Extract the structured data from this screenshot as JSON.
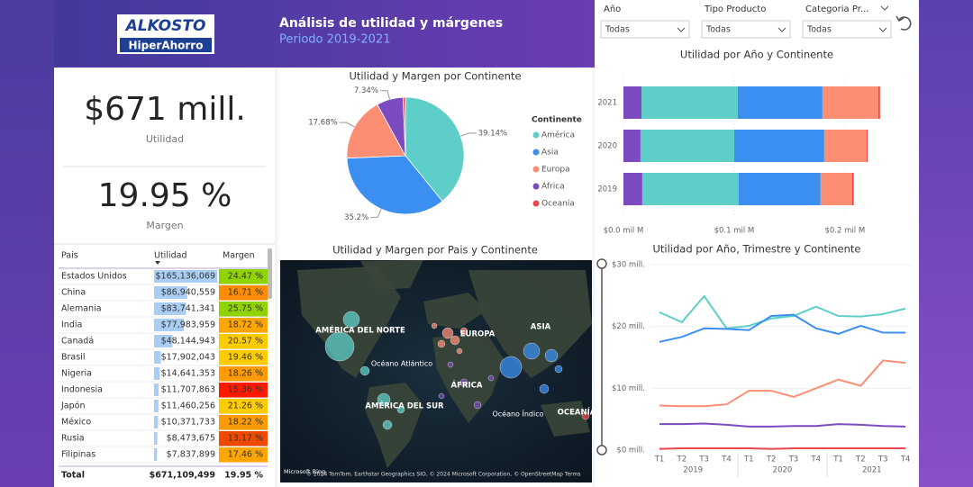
{
  "header": {
    "logo_top": "ALKOSTO",
    "logo_bottom": "HiperAhorro",
    "title": "Análisis de utilidad y márgenes",
    "subtitle": "Periodo 2019-2021"
  },
  "filters": [
    {
      "label": "Año",
      "value": "Todas"
    },
    {
      "label": "Tipo Producto",
      "value": "Todas"
    },
    {
      "label": "Categoria Pr...",
      "value": "Todas"
    }
  ],
  "kpis": [
    {
      "value": "$671 mill.",
      "label": "Utilidad"
    },
    {
      "value": "19.95 %",
      "label": "Margen"
    }
  ],
  "table": {
    "columns": [
      "Pais",
      "Utilidad",
      "Margen"
    ],
    "rows": [
      [
        "Estados Unidos",
        "$165,136,069",
        "24.47 %"
      ],
      [
        "China",
        "$86,940,559",
        "16.71 %"
      ],
      [
        "Alemania",
        "$83,741,341",
        "25.75 %"
      ],
      [
        "India",
        "$77,983,959",
        "18.72 %"
      ],
      [
        "Canadá",
        "$48,144,943",
        "20.57 %"
      ],
      [
        "Brasil",
        "$17,902,043",
        "19.46 %"
      ],
      [
        "Nigeria",
        "$14,641,353",
        "18.26 %"
      ],
      [
        "Indonesia",
        "$11,707,863",
        "15.36 %"
      ],
      [
        "Japón",
        "$11,460,256",
        "21.26 %"
      ],
      [
        "México",
        "$10,371,733",
        "18.22 %"
      ],
      [
        "Rusia",
        "$8,473,675",
        "13.17 %"
      ],
      [
        "Filipinas",
        "$7,837,899",
        "17.46 %"
      ]
    ],
    "margin_colors": [
      "#8fd400",
      "#ff8c00",
      "#8fd400",
      "#ffa500",
      "#ffcc00",
      "#ffcc00",
      "#ff9a00",
      "#ff1a00",
      "#ffcc00",
      "#ff9a00",
      "#f04a00",
      "#ffa500"
    ],
    "total": [
      "Total",
      "$671,109,499",
      "19.95 %"
    ]
  },
  "map": {
    "title": "Utilidad y Margen por Pais y Continente",
    "labels": [
      "AMÉRICA DEL NORTE",
      "EUROPA",
      "ASIA",
      "Océano Atlántico",
      "ÁFRICA",
      "AMÉRICA DEL SUR",
      "Océano Índico",
      "OCEANÍA"
    ],
    "attribution": "© 2024 TomTom, Earthstar Geographics SIO, © 2024 Microsoft Corporation, © OpenStreetMap Terms",
    "brand": "Microsoft Bing"
  },
  "chart_data": [
    {
      "type": "pie",
      "title": "Utilidad y Margen por Continente",
      "legend_title": "Continente",
      "categories": [
        "América",
        "Asia",
        "Europa",
        "África",
        "Oceanía"
      ],
      "values": [
        39.14,
        35.2,
        17.68,
        7.34,
        0.64
      ],
      "value_labels": [
        "39.14%",
        "35.2%",
        "17.68%",
        "7.34%",
        null
      ],
      "colors": [
        "#5ecfc8",
        "#3b8ff0",
        "#fd8e74",
        "#7b4bbf",
        "#e8494e"
      ]
    },
    {
      "type": "stacked-bar-horizontal",
      "title": "Utilidad por Año y Continente",
      "categories": [
        "2021",
        "2020",
        "2019"
      ],
      "series": [
        {
          "name": "África",
          "color": "#7b4bbf",
          "values": [
            0.0163,
            0.0154,
            0.017
          ]
        },
        {
          "name": "América",
          "color": "#5ecfc8",
          "values": [
            0.087,
            0.0846,
            0.087
          ]
        },
        {
          "name": "Asia",
          "color": "#3b8ff0",
          "values": [
            0.0764,
            0.0813,
            0.074
          ]
        },
        {
          "name": "Europa",
          "color": "#fd8e74",
          "values": [
            0.0504,
            0.0382,
            0.0285
          ]
        },
        {
          "name": "Oceanía",
          "color": "#e8494e",
          "values": [
            0.0016,
            0.001,
            0.0015
          ]
        }
      ],
      "xlim": [
        0,
        0.24
      ],
      "xticks": [
        {
          "value": 0,
          "label": "$0.0 mil M"
        },
        {
          "value": 0.1,
          "label": "$0.1 mil M"
        },
        {
          "value": 0.2,
          "label": "$0.2 mil M"
        }
      ]
    },
    {
      "type": "line",
      "title": "Utilidad por Año, Trimestre y Continente",
      "categories": [
        "T1",
        "T2",
        "T3",
        "T4",
        "T1",
        "T2",
        "T3",
        "T4",
        "T1",
        "T2",
        "T3",
        "T4"
      ],
      "groups": [
        "2019",
        "2020",
        "2021"
      ],
      "series": [
        {
          "name": "América",
          "color": "#5ecfc8",
          "values": [
            22.3,
            20.7,
            24.9,
            19.7,
            20.1,
            21.3,
            21.7,
            23.2,
            21.7,
            21.6,
            22.0,
            22.9
          ]
        },
        {
          "name": "Asia",
          "color": "#3b8ff0",
          "values": [
            17.5,
            18.3,
            19.7,
            19.6,
            19.4,
            21.7,
            21.9,
            19.7,
            18.8,
            20.1,
            19.0,
            19.0
          ]
        },
        {
          "name": "Europa",
          "color": "#fd8e74",
          "values": [
            7.2,
            7.1,
            7.1,
            7.4,
            9.6,
            9.6,
            8.6,
            10.0,
            11.4,
            10.4,
            14.5,
            14.1
          ]
        },
        {
          "name": "África",
          "color": "#7b4bbf",
          "values": [
            4.2,
            4.2,
            4.3,
            4.1,
            3.8,
            3.8,
            3.9,
            3.9,
            4.2,
            4.1,
            3.9,
            3.8
          ]
        },
        {
          "name": "Oceanía",
          "color": "#e8494e",
          "values": [
            0.2,
            0.3,
            0.3,
            0.3,
            0.3,
            0.2,
            0.3,
            0.3,
            0.3,
            0.3,
            0.3,
            0.3
          ]
        }
      ],
      "ylim": [
        0,
        30
      ],
      "yticks": [
        {
          "value": 0,
          "label": "$0 mill."
        },
        {
          "value": 10,
          "label": "$10 mill."
        },
        {
          "value": 20,
          "label": "$20 mill."
        },
        {
          "value": 30,
          "label": "$30 mill."
        }
      ]
    }
  ]
}
